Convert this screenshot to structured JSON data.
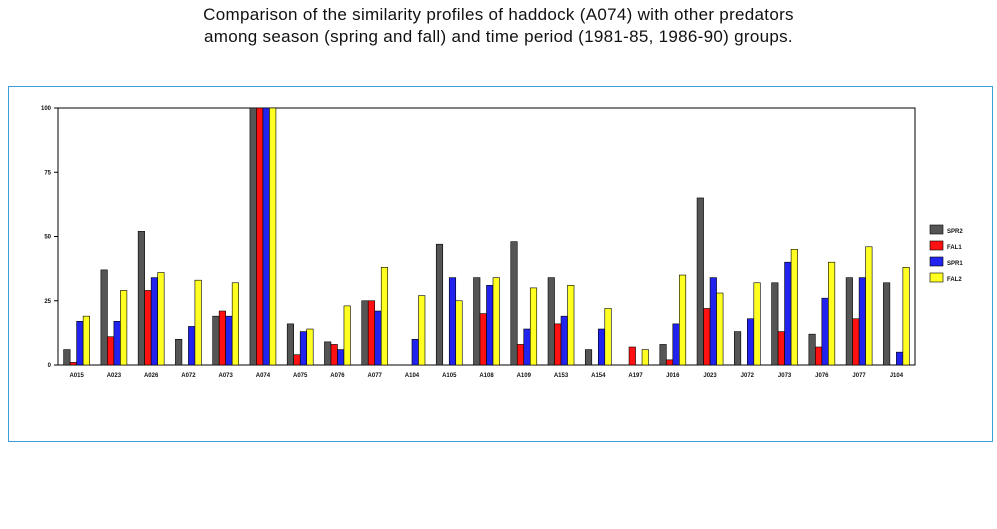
{
  "title": {
    "line1": "Comparison of the similarity profiles of haddock (A074) with other predators",
    "line2": "among season (spring and fall) and time period (1981-85, 1986-90) groups."
  },
  "colors": {
    "SPR2": "#555555",
    "FAL1": "#ff1111",
    "SPR1": "#2222ee",
    "FAL2": "#ffff22"
  },
  "chart_data": {
    "type": "bar",
    "title": "Comparison of the similarity profiles of haddock (A074) with other predators among season (spring and fall) and time period (1981-85, 1986-90) groups.",
    "xlabel": "",
    "ylabel": "",
    "ylim": [
      0,
      100
    ],
    "yticks": [
      "0",
      "25",
      "50",
      "75",
      "100"
    ],
    "grid": false,
    "legend_position": "right",
    "categories": [
      "A015",
      "A023",
      "A026",
      "A072",
      "A073",
      "A074",
      "A075",
      "A076",
      "A077",
      "A104",
      "A105",
      "A108",
      "A109",
      "A153",
      "A154",
      "A197",
      "J016",
      "J023",
      "J072",
      "J073",
      "J076",
      "J077",
      "J104"
    ],
    "series": [
      {
        "name": "SPR2",
        "values": [
          6,
          37,
          52,
          10,
          19,
          100,
          16,
          9,
          25,
          0,
          47,
          34,
          48,
          34,
          6,
          0,
          8,
          65,
          13,
          32,
          12,
          34,
          32
        ]
      },
      {
        "name": "FAL1",
        "values": [
          1,
          11,
          29,
          0,
          21,
          100,
          4,
          8,
          25,
          0,
          0,
          20,
          8,
          16,
          0,
          7,
          2,
          22,
          0,
          13,
          7,
          18,
          0
        ]
      },
      {
        "name": "SPR1",
        "values": [
          17,
          17,
          34,
          15,
          19,
          100,
          13,
          6,
          21,
          10,
          34,
          31,
          14,
          19,
          14,
          0,
          16,
          34,
          18,
          40,
          26,
          34,
          5
        ]
      },
      {
        "name": "FAL2",
        "values": [
          19,
          29,
          36,
          33,
          32,
          100,
          14,
          23,
          38,
          27,
          25,
          34,
          30,
          31,
          22,
          6,
          35,
          28,
          32,
          45,
          40,
          46,
          38
        ]
      }
    ]
  }
}
